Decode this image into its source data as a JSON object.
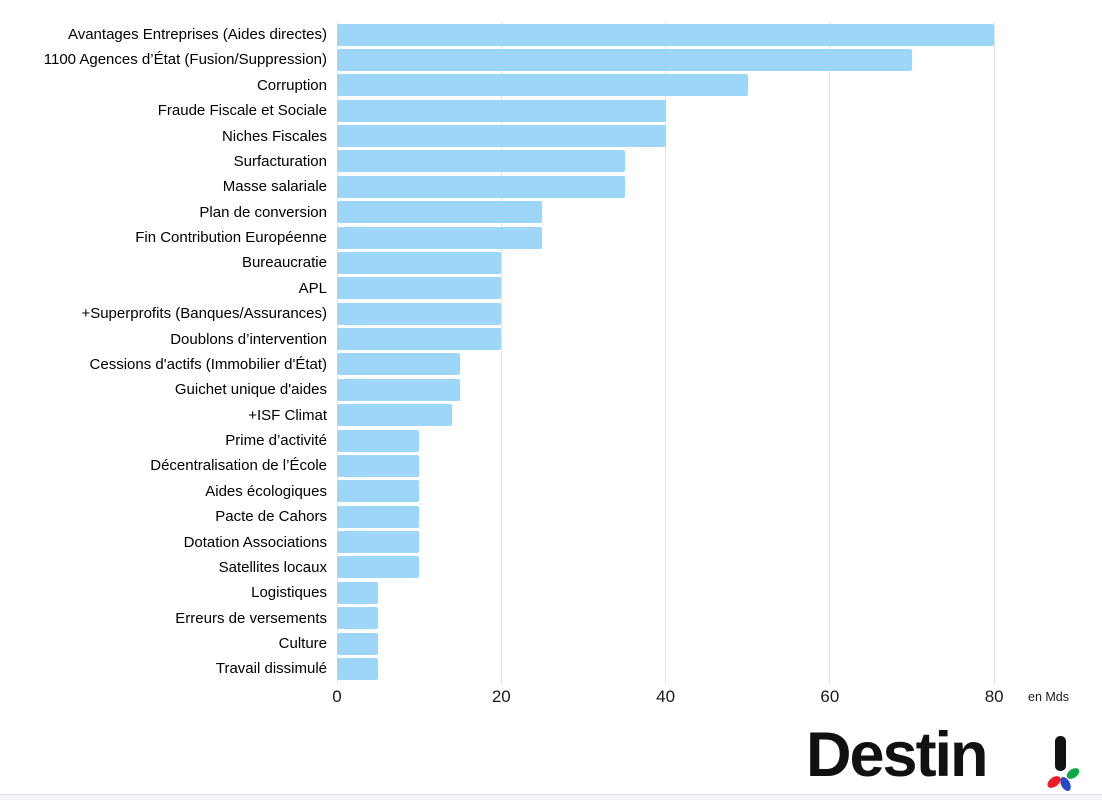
{
  "chart_data": {
    "type": "bar",
    "orientation": "horizontal",
    "title": "",
    "xlabel": "",
    "ylabel": "",
    "axis_unit_label": "en Mds",
    "grid": "vertical",
    "legend": "none",
    "xlim": [
      0,
      92
    ],
    "x_ticks": [
      0,
      20,
      40,
      60,
      80
    ],
    "x_tick_labels": [
      "0",
      "20",
      "40",
      "60",
      "80"
    ],
    "bar_color": "#9ed6f9",
    "gridline_color": "#e3e3e3",
    "categories": [
      "Avantages Entreprises (Aides directes)",
      "1100 Agences d’État (Fusion/Suppression)",
      "Corruption",
      "Fraude Fiscale et Sociale",
      "Niches Fiscales",
      "Surfacturation",
      "Masse salariale",
      "Plan de conversion",
      "Fin Contribution Européenne",
      "Bureaucratie",
      "APL",
      "+Superprofits (Banques/Assurances)",
      "Doublons d’intervention",
      "Cessions d'actifs (Immobilier d'État)",
      "Guichet unique d'aides",
      "+ISF Climat",
      "Prime d’activité",
      "Décentralisation de l’École",
      "Aides écologiques",
      "Pacte de Cahors",
      "Dotation Associations",
      "Satellites locaux",
      "Logistiques",
      "Erreurs de versements",
      "Culture",
      "Travail dissimulé"
    ],
    "values": [
      80,
      70,
      50,
      40,
      40,
      35,
      35,
      25,
      25,
      20,
      20,
      20,
      20,
      15,
      15,
      14,
      10,
      10,
      10,
      10,
      10,
      10,
      5,
      5,
      5,
      5
    ]
  },
  "branding": {
    "logo_text": "Destin",
    "logo_exclamation": "!",
    "colors": {
      "logo_text": "#111111",
      "petal_red": "#ed1c24",
      "petal_blue": "#2547c9",
      "petal_green": "#10a64a"
    }
  }
}
